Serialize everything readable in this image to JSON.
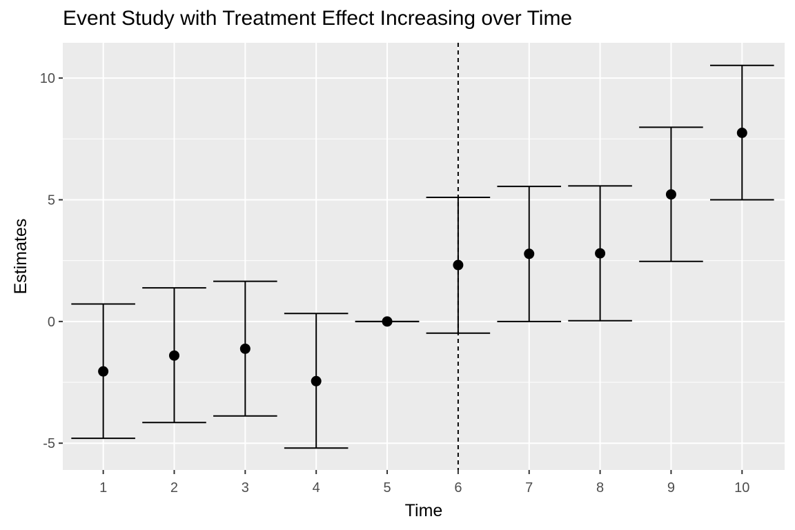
{
  "chart_data": {
    "type": "scatter",
    "subtype": "point-with-errorbars",
    "title": "Event Study with Treatment Effect Increasing over Time",
    "xlabel": "Time",
    "ylabel": "Estimates",
    "x": [
      1,
      2,
      3,
      4,
      5,
      6,
      7,
      8,
      9,
      10
    ],
    "series": [
      {
        "values": [
          -2.05,
          -1.4,
          -1.12,
          -2.45,
          0.0,
          2.32,
          2.78,
          2.8,
          5.22,
          7.75
        ],
        "lower": [
          -4.8,
          -4.15,
          -3.88,
          -5.2,
          0.0,
          -0.48,
          0.0,
          0.03,
          2.47,
          5.0
        ],
        "upper": [
          0.72,
          1.38,
          1.65,
          0.33,
          0.0,
          5.1,
          5.55,
          5.57,
          7.98,
          10.52
        ]
      }
    ],
    "reference_line": {
      "x": 6,
      "style": "dashed"
    },
    "xlim": [
      0.43,
      10.6
    ],
    "ylim": [
      -6.1,
      11.45
    ],
    "x_ticks": [
      "1",
      "2",
      "3",
      "4",
      "5",
      "6",
      "7",
      "8",
      "9",
      "10"
    ],
    "y_ticks": [
      {
        "value": -5,
        "label": "-5"
      },
      {
        "value": 0,
        "label": "0"
      },
      {
        "value": 5,
        "label": "5"
      },
      {
        "value": 10,
        "label": "10"
      }
    ],
    "grid": true,
    "legend": "none",
    "colors": {
      "panel_background": "#ebebeb",
      "grid_line": "#ffffff",
      "mark": "#000000",
      "tick_text": "#4d4d4d"
    }
  }
}
